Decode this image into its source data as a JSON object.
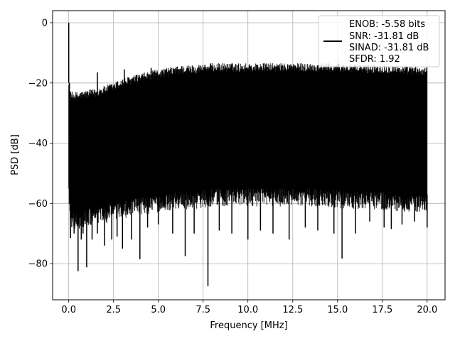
{
  "chart_data": {
    "type": "line",
    "title": "",
    "xlabel": "Frequency [MHz]",
    "ylabel": "PSD [dB]",
    "xlim": [
      -0.9,
      21.0
    ],
    "ylim": [
      -92,
      4
    ],
    "xticks": [
      0.0,
      2.5,
      5.0,
      7.5,
      10.0,
      12.5,
      15.0,
      17.5,
      20.0
    ],
    "xtick_labels": [
      "0.0",
      "2.5",
      "5.0",
      "7.5",
      "10.0",
      "12.5",
      "15.0",
      "17.5",
      "20.0"
    ],
    "yticks": [
      0,
      -20,
      -40,
      -60,
      -80
    ],
    "ytick_labels": [
      "0",
      "−20",
      "−40",
      "−60",
      "−80"
    ],
    "grid": true,
    "legend_position": "top-right",
    "series_color": "#000000",
    "series": [
      {
        "legend_lines": [
          "ENOB: -5.58 bits",
          "SNR: -31.81 dB",
          "SINAD: -31.81 dB",
          "SFDR: 1.92"
        ],
        "envelope": {
          "x": [
            0.0,
            0.1,
            0.5,
            1.0,
            1.5,
            2.0,
            2.5,
            3.0,
            4.0,
            5.0,
            6.0,
            7.0,
            8.0,
            9.0,
            10.0,
            11.0,
            12.0,
            13.0,
            14.0,
            15.0,
            16.0,
            17.0,
            18.0,
            19.0,
            20.0
          ],
          "upper": [
            -20,
            -25,
            -25,
            -24.5,
            -24,
            -23,
            -22,
            -20.5,
            -19,
            -17.5,
            -16.5,
            -16,
            -15.5,
            -15.5,
            -15.5,
            -15.5,
            -15.5,
            -15.5,
            -15.5,
            -15.5,
            -16,
            -16,
            -16,
            -16.5,
            -17
          ],
          "lower": [
            -55,
            -62,
            -63,
            -62,
            -61,
            -61,
            -60,
            -59,
            -58,
            -57,
            -56,
            -56,
            -55,
            -55,
            -55,
            -55,
            -55,
            -55,
            -55,
            -55.5,
            -56,
            -56,
            -56.5,
            -57,
            -57
          ]
        },
        "peaks": [
          {
            "x": 0.0,
            "y": 0.0
          },
          {
            "x": 0.04,
            "y": -20.0
          },
          {
            "x": 1.6,
            "y": -16.5
          },
          {
            "x": 3.1,
            "y": -15.5
          },
          {
            "x": 4.6,
            "y": -15.0
          },
          {
            "x": 6.3,
            "y": -14.5
          },
          {
            "x": 7.6,
            "y": -14.0
          },
          {
            "x": 9.0,
            "y": -13.8
          },
          {
            "x": 11.0,
            "y": -13.8
          },
          {
            "x": 12.4,
            "y": -13.8
          },
          {
            "x": 14.5,
            "y": -14.0
          },
          {
            "x": 15.8,
            "y": -14.5
          },
          {
            "x": 17.9,
            "y": -15.0
          },
          {
            "x": 19.3,
            "y": -16.0
          }
        ],
        "dips": [
          {
            "x": 0.1,
            "y": -71.5
          },
          {
            "x": 0.3,
            "y": -70.0
          },
          {
            "x": 0.52,
            "y": -82.5
          },
          {
            "x": 0.7,
            "y": -72.0
          },
          {
            "x": 0.8,
            "y": -70.0
          },
          {
            "x": 1.0,
            "y": -81.2
          },
          {
            "x": 1.3,
            "y": -72.0
          },
          {
            "x": 1.6,
            "y": -70.0
          },
          {
            "x": 2.0,
            "y": -74.0
          },
          {
            "x": 2.4,
            "y": -72.0
          },
          {
            "x": 2.7,
            "y": -71.0
          },
          {
            "x": 3.0,
            "y": -75.0
          },
          {
            "x": 3.5,
            "y": -72.0
          },
          {
            "x": 3.97,
            "y": -78.5
          },
          {
            "x": 4.4,
            "y": -68.0
          },
          {
            "x": 5.0,
            "y": -67.0
          },
          {
            "x": 5.8,
            "y": -70.0
          },
          {
            "x": 6.5,
            "y": -77.5
          },
          {
            "x": 7.0,
            "y": -70.0
          },
          {
            "x": 7.77,
            "y": -87.5
          },
          {
            "x": 8.4,
            "y": -69.0
          },
          {
            "x": 9.1,
            "y": -70.0
          },
          {
            "x": 10.0,
            "y": -72.0
          },
          {
            "x": 10.7,
            "y": -69.0
          },
          {
            "x": 11.4,
            "y": -70.0
          },
          {
            "x": 12.3,
            "y": -72.0
          },
          {
            "x": 13.2,
            "y": -68.0
          },
          {
            "x": 13.9,
            "y": -69.0
          },
          {
            "x": 14.8,
            "y": -70.0
          },
          {
            "x": 15.25,
            "y": -78.3
          },
          {
            "x": 16.0,
            "y": -70.0
          },
          {
            "x": 16.8,
            "y": -66.0
          },
          {
            "x": 17.6,
            "y": -68.0
          },
          {
            "x": 18.0,
            "y": -68.5
          },
          {
            "x": 18.6,
            "y": -67.0
          },
          {
            "x": 19.3,
            "y": -66.0
          },
          {
            "x": 20.0,
            "y": -68.0
          }
        ]
      }
    ]
  }
}
